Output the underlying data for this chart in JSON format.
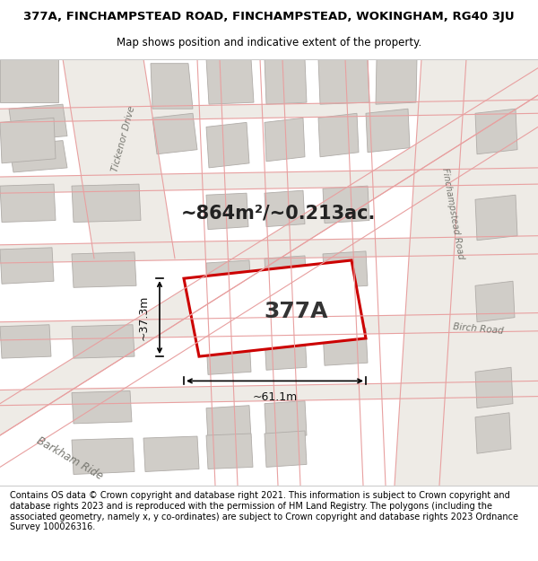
{
  "title_line1": "377A, FINCHAMPSTEAD ROAD, FINCHAMPSTEAD, WOKINGHAM, RG40 3JU",
  "title_line2": "Map shows position and indicative extent of the property.",
  "footer_text": "Contains OS data © Crown copyright and database right 2021. This information is subject to Crown copyright and database rights 2023 and is reproduced with the permission of HM Land Registry. The polygons (including the associated geometry, namely x, y co-ordinates) are subject to Crown copyright and database rights 2023 Ordnance Survey 100026316.",
  "area_label": "~864m²/~0.213ac.",
  "property_label": "377A",
  "width_label": "~61.1m",
  "height_label": "~37.3m",
  "bg_color": "#ffffff",
  "map_bg": "#f7f7f5",
  "road_line_color": "#e8a0a0",
  "building_fill": "#d0cdc8",
  "building_stroke": "#b0aca8",
  "highlight_fill": "#ffffff",
  "highlight_stroke": "#cc0000",
  "road_label_color": "#777770",
  "title_fontsize": 9.5,
  "subtitle_fontsize": 8.5,
  "footer_fontsize": 7.0,
  "area_fontsize": 15,
  "property_label_fontsize": 18,
  "dim_label_fontsize": 9
}
